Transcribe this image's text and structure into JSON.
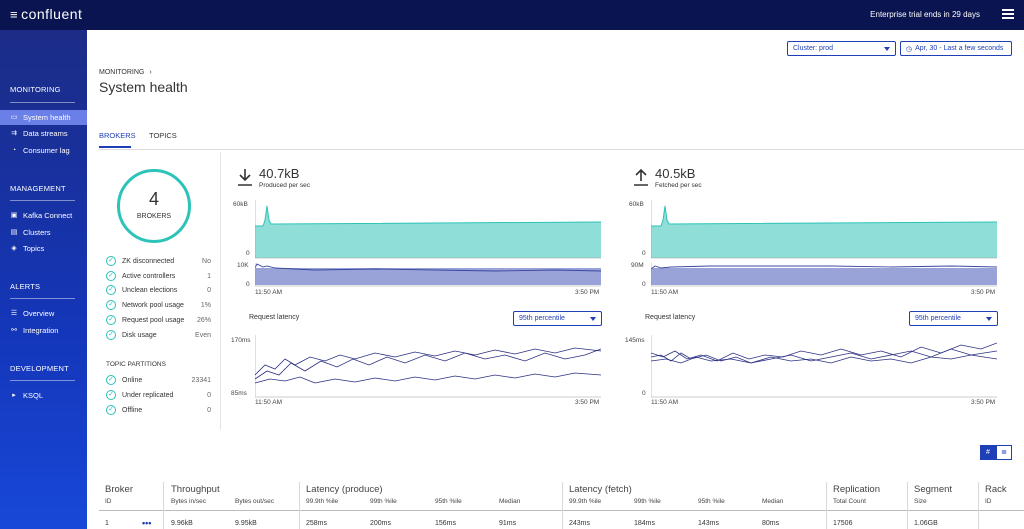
{
  "app": {
    "logo_mark": "≡",
    "logo_text": "confluent",
    "trial": "Enterprise trial ends in 29 days"
  },
  "sidebar": {
    "monitoring": "MONITORING",
    "monitoring_items": [
      {
        "label": "System health",
        "icon": "display-icon",
        "glyph": "▭"
      },
      {
        "label": "Data streams",
        "icon": "streams-icon",
        "glyph": "⇉"
      },
      {
        "label": "Consumer lag",
        "icon": "gauge-icon",
        "glyph": "◔"
      }
    ],
    "management": "MANAGEMENT",
    "management_items": [
      {
        "label": "Kafka Connect",
        "icon": "connect-icon",
        "glyph": "▣"
      },
      {
        "label": "Clusters",
        "icon": "clusters-icon",
        "glyph": "▤"
      },
      {
        "label": "Topics",
        "icon": "topics-icon",
        "glyph": "◈"
      }
    ],
    "alerts": "ALERTS",
    "alerts_items": [
      {
        "label": "Overview",
        "icon": "list-icon",
        "glyph": "☰"
      },
      {
        "label": "Integration",
        "icon": "integration-icon",
        "glyph": "⚯"
      }
    ],
    "development": "DEVELOPMENT",
    "development_items": [
      {
        "label": "KSQL",
        "icon": "ksql-icon",
        "glyph": "▸"
      }
    ]
  },
  "filters": {
    "cluster": "Cluster: prod",
    "time": "Apr, 30 - Last a few seconds"
  },
  "page": {
    "breadcrumb": "MONITORING",
    "breadcrumb_arrow": "›",
    "title": "System health"
  },
  "tabs": [
    "BROKERS",
    "TOPICS"
  ],
  "brokers": {
    "count": "4",
    "label": "BROKERS"
  },
  "broker_stats": [
    {
      "label": "ZK disconnected",
      "value": "No"
    },
    {
      "label": "Active controllers",
      "value": "1"
    },
    {
      "label": "Unclean elections",
      "value": "0"
    },
    {
      "label": "Network pool usage",
      "value": "1%"
    },
    {
      "label": "Request pool usage",
      "value": "26%"
    },
    {
      "label": "Disk usage",
      "value": "Even"
    }
  ],
  "topic_partitions": {
    "heading": "TOPIC PARTITIONS",
    "rows": [
      {
        "label": "Online",
        "value": "23341"
      },
      {
        "label": "Under replicated",
        "value": "0"
      },
      {
        "label": "Offline",
        "value": "0"
      }
    ]
  },
  "produced": {
    "value": "40.7kB",
    "sub": "Produced per sec",
    "throughput_ymax": "60kB",
    "throughput_ymin": "0",
    "bar_ymax": "10K",
    "bar_ymin": "0",
    "x_start": "11:50 AM",
    "x_end": "3:50 PM",
    "latency_label": "Request latency",
    "percentile": "95th percentile",
    "latency_ymax": "170ms",
    "latency_ymin": "85ms",
    "latency_x_start": "11:50 AM",
    "latency_x_end": "3:50 PM"
  },
  "fetched": {
    "value": "40.5kB",
    "sub": "Fetched per sec",
    "throughput_ymax": "60kB",
    "throughput_ymin": "0",
    "bar_ymax": "90M",
    "bar_ymin": "0",
    "x_start": "11:50 AM",
    "x_end": "3:50 PM",
    "latency_label": "Request latency",
    "percentile": "95th percentile",
    "latency_ymax": "145ms",
    "latency_ymin": "0",
    "latency_x_start": "11:50 AM",
    "latency_x_end": "3:50 PM"
  },
  "view_toggle": {
    "grid_glyph": "#",
    "list_glyph": "≣"
  },
  "table": {
    "groups": [
      "Broker",
      "Throughput",
      "Latency (produce)",
      "Latency (fetch)",
      "Replication",
      "Segment",
      "Rack"
    ],
    "subheaders": [
      "ID",
      "Bytes in/sec",
      "Bytes out/sec",
      "99.9th %ile",
      "99th %ile",
      "95th %ile",
      "Median",
      "99.9th %ile",
      "99th %ile",
      "95th %ile",
      "Median",
      "Total Count",
      "Size",
      "ID"
    ],
    "row": [
      "1",
      "9.96kB",
      "9.95kB",
      "258ms",
      "200ms",
      "156ms",
      "91ms",
      "243ms",
      "184ms",
      "143ms",
      "80ms",
      "17506",
      "1.06GB",
      ""
    ],
    "row_menu": "•••"
  },
  "colors": {
    "accent": "#1f3fb6",
    "teal": "#2cc3b8",
    "topbar": "#0a1450",
    "sidebar": "#1436b9"
  }
}
